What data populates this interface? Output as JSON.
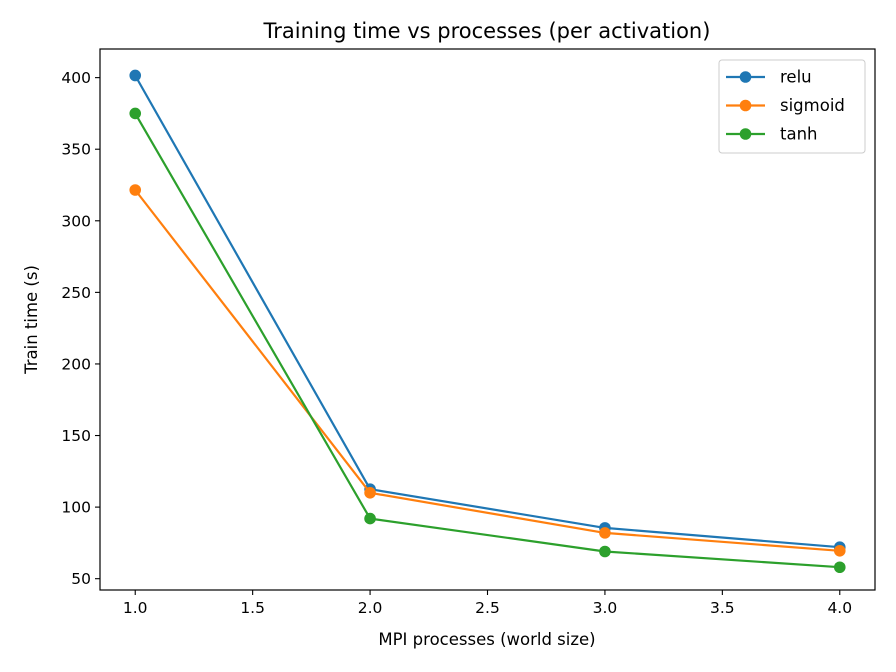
{
  "chart_data": {
    "type": "line",
    "title": "Training time vs processes (per activation)",
    "xlabel": "MPI processes (world size)",
    "ylabel": "Train time (s)",
    "xlim": [
      0.85,
      4.15
    ],
    "ylim": [
      42.1,
      420.0
    ],
    "xticks": [
      1.0,
      1.5,
      2.0,
      2.5,
      3.0,
      3.5,
      4.0
    ],
    "xtick_labels": [
      "1.0",
      "1.5",
      "2.0",
      "2.5",
      "3.0",
      "3.5",
      "4.0"
    ],
    "yticks": [
      50,
      100,
      150,
      200,
      250,
      300,
      350,
      400
    ],
    "ytick_labels": [
      "50",
      "100",
      "150",
      "200",
      "250",
      "300",
      "350",
      "400"
    ],
    "x": [
      1,
      2,
      3,
      4
    ],
    "series": [
      {
        "name": "relu",
        "color": "#1f77b4",
        "values": [
          401.5,
          112.5,
          85.5,
          72.0
        ]
      },
      {
        "name": "sigmoid",
        "color": "#ff7f0e",
        "values": [
          321.5,
          110.0,
          82.0,
          69.5
        ]
      },
      {
        "name": "tanh",
        "color": "#2ca02c",
        "values": [
          375.0,
          92.0,
          69.0,
          58.0
        ]
      }
    ],
    "grid": false,
    "legend_position": "top-right",
    "marker": "circle"
  }
}
